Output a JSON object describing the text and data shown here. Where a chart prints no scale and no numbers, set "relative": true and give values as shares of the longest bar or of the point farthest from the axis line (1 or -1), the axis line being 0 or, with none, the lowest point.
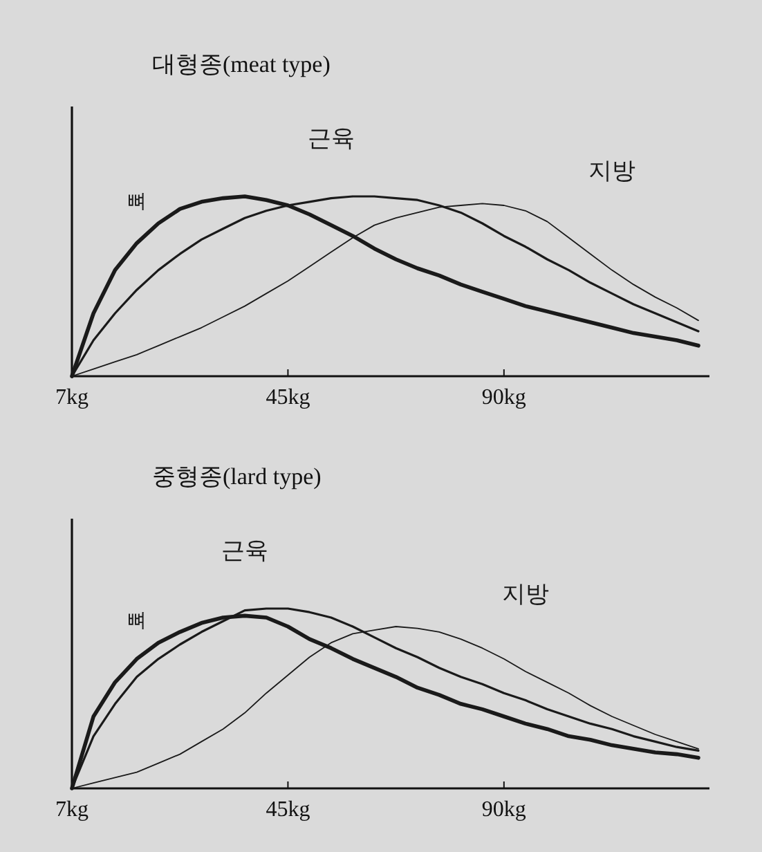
{
  "chart_data": [
    {
      "type": "line",
      "title": "대형종(meat type)",
      "relative": true,
      "categories": [
        "7kg",
        null,
        null,
        null,
        null,
        null,
        null,
        null,
        null,
        null,
        "45kg",
        null,
        null,
        null,
        null,
        null,
        null,
        null,
        null,
        null,
        "90kg",
        null,
        null,
        null,
        null,
        null,
        null,
        null,
        null,
        null
      ],
      "series": [
        {
          "name": "뼈",
          "color": "#1a1a1a",
          "values": [
            0,
            0.35,
            0.59,
            0.74,
            0.85,
            0.93,
            0.97,
            0.99,
            1.0,
            0.98,
            0.95,
            0.9,
            0.84,
            0.78,
            0.71,
            0.65,
            0.6,
            0.56,
            0.51,
            0.47,
            0.43,
            0.39,
            0.36,
            0.33,
            0.3,
            0.27,
            0.24,
            0.22,
            0.2,
            0.17
          ]
        },
        {
          "name": "근육",
          "color": "#1a1a1a",
          "values": [
            0,
            0.2,
            0.35,
            0.48,
            0.59,
            0.68,
            0.76,
            0.82,
            0.88,
            0.92,
            0.95,
            0.97,
            0.99,
            1.0,
            1.0,
            0.99,
            0.98,
            0.95,
            0.91,
            0.85,
            0.78,
            0.72,
            0.65,
            0.59,
            0.52,
            0.46,
            0.4,
            0.35,
            0.3,
            0.25
          ]
        },
        {
          "name": "지방",
          "color": "#1a1a1a",
          "values": [
            0,
            0.04,
            0.08,
            0.12,
            0.17,
            0.22,
            0.27,
            0.33,
            0.39,
            0.46,
            0.53,
            0.61,
            0.69,
            0.77,
            0.84,
            0.88,
            0.91,
            0.94,
            0.95,
            0.96,
            0.95,
            0.92,
            0.86,
            0.77,
            0.68,
            0.59,
            0.51,
            0.44,
            0.38,
            0.31
          ]
        }
      ]
    },
    {
      "type": "line",
      "title": "중형종(lard type)",
      "relative": true,
      "categories": [
        "7kg",
        null,
        null,
        null,
        null,
        null,
        null,
        null,
        null,
        null,
        "45kg",
        null,
        null,
        null,
        null,
        null,
        null,
        null,
        null,
        null,
        "90kg",
        null,
        null,
        null,
        null,
        null,
        null,
        null,
        null,
        null
      ],
      "series": [
        {
          "name": "뼈",
          "color": "#1a1a1a",
          "values": [
            0,
            0.4,
            0.59,
            0.72,
            0.81,
            0.87,
            0.92,
            0.95,
            0.96,
            0.95,
            0.9,
            0.83,
            0.78,
            0.72,
            0.67,
            0.62,
            0.56,
            0.52,
            0.47,
            0.44,
            0.4,
            0.36,
            0.33,
            0.29,
            0.27,
            0.24,
            0.22,
            0.2,
            0.19,
            0.17
          ]
        },
        {
          "name": "근육",
          "color": "#1a1a1a",
          "values": [
            0,
            0.29,
            0.47,
            0.62,
            0.72,
            0.8,
            0.87,
            0.93,
            0.99,
            1.0,
            1.0,
            0.98,
            0.95,
            0.9,
            0.84,
            0.78,
            0.73,
            0.67,
            0.62,
            0.58,
            0.53,
            0.49,
            0.44,
            0.4,
            0.36,
            0.33,
            0.29,
            0.26,
            0.23,
            0.21
          ]
        },
        {
          "name": "지방",
          "color": "#1a1a1a",
          "values": [
            0,
            0.03,
            0.06,
            0.09,
            0.14,
            0.19,
            0.26,
            0.33,
            0.42,
            0.53,
            0.63,
            0.73,
            0.81,
            0.86,
            0.88,
            0.9,
            0.89,
            0.87,
            0.83,
            0.78,
            0.72,
            0.65,
            0.59,
            0.53,
            0.46,
            0.4,
            0.35,
            0.3,
            0.26,
            0.22
          ]
        }
      ]
    }
  ]
}
